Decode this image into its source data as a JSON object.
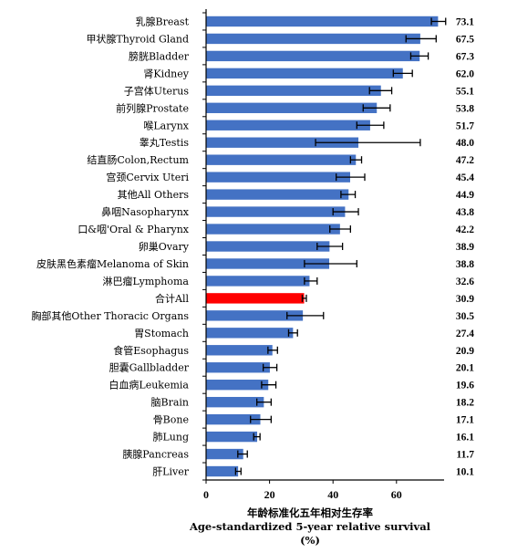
{
  "chart_data": {
    "type": "bar",
    "orientation": "horizontal",
    "categories": [
      "乳腺Breast",
      "甲状腺Thyroid Gland",
      "膀胱Bladder",
      "肾Kidney",
      "子宫体Uterus",
      "前列腺Prostate",
      "喉Larynx",
      "睾丸Testis",
      "结直肠Colon,Rectum",
      "宫颈Cervix Uteri",
      "其他All Others",
      "鼻咽Nasopharynx",
      "口&咽'Oral & Pharynx",
      "卵巢Ovary",
      "皮肤黑色素瘤Melanoma of Skin",
      "淋巴瘤Lymphoma",
      "合计All",
      "胸部其他Other Thoracic Organs",
      "胃Stomach",
      "食管Esophagus",
      "胆囊Gallbladder",
      "白血病Leukemia",
      "脑Brain",
      "骨Bone",
      "肺Lung",
      "胰腺Pancreas",
      "肝Liver"
    ],
    "values": [
      73.1,
      67.5,
      67.3,
      62.0,
      55.1,
      53.8,
      51.7,
      48.0,
      47.2,
      45.4,
      44.9,
      43.8,
      42.2,
      38.9,
      38.8,
      32.6,
      30.9,
      30.5,
      27.4,
      20.9,
      20.1,
      19.6,
      18.2,
      17.1,
      16.1,
      11.7,
      10.1
    ],
    "value_labels": [
      "73.1",
      "67.5",
      "67.3",
      "62.0",
      "55.1",
      "53.8",
      "51.7",
      "48.0",
      "47.2",
      "45.4",
      "44.9",
      "43.8",
      "42.2",
      "38.9",
      "38.8",
      "32.6",
      "30.9",
      "30.5",
      "27.4",
      "20.9",
      "20.1",
      "19.6",
      "18.2",
      "17.1",
      "16.1",
      "11.7",
      "10.1"
    ],
    "error_low": [
      71,
      63,
      64.5,
      59,
      51.5,
      49.5,
      47.5,
      34.5,
      45.5,
      41,
      42.5,
      40,
      39,
      35,
      31,
      31,
      30.3,
      25.5,
      26,
      19.5,
      18,
      17.5,
      16,
      14,
      15,
      10,
      9.3
    ],
    "error_high": [
      75.5,
      72.5,
      70,
      65,
      58.5,
      58,
      56,
      67.5,
      49,
      50,
      47,
      48,
      45.5,
      43,
      47.5,
      35,
      31.6,
      37,
      28.8,
      22.5,
      22.3,
      22,
      20.5,
      20.5,
      17,
      13,
      11
    ],
    "highlight_category": "合计All",
    "colors": {
      "bar": "#4472C4",
      "highlight": "#FF0000",
      "error_bar": "#000000"
    },
    "xlim": [
      0,
      75
    ],
    "xticks": [
      0,
      20,
      40,
      60
    ],
    "xtick_labels": [
      "0",
      "20",
      "40",
      "60"
    ],
    "xlabel_lines": [
      "年龄标准化五年相对生存率",
      "Age-standardized 5-year relative survival",
      "(%)"
    ],
    "grid": false,
    "legend": "none"
  }
}
